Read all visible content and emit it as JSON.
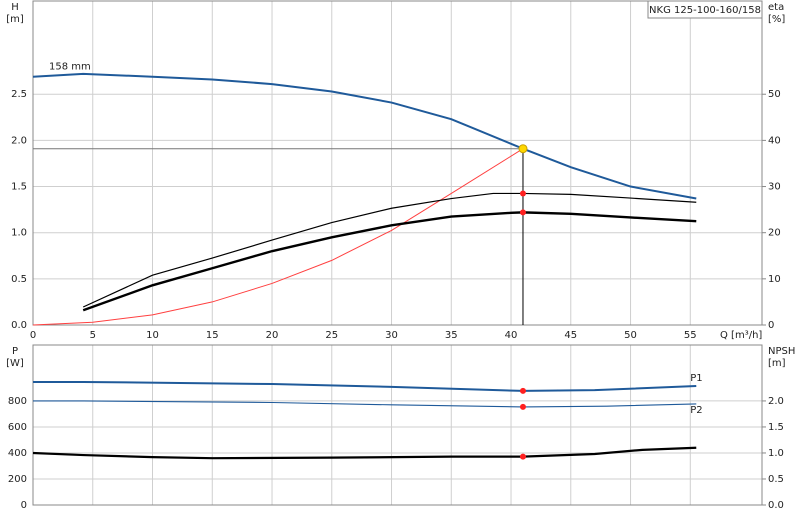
{
  "chart_data": [
    {
      "type": "line",
      "title": "NKG 125-100-160/158",
      "ylabel": [
        "H",
        "[m]"
      ],
      "y2label": [
        "eta",
        "[%]"
      ],
      "xlabel": "Q [m³/h]",
      "xlim": [
        0,
        61
      ],
      "xticks": [
        0,
        5,
        10,
        15,
        20,
        25,
        30,
        35,
        40,
        45,
        50,
        55
      ],
      "show_xtick_labels": true,
      "ylim": [
        0,
        3.51
      ],
      "yticks": [
        {
          "value": 0,
          "label": "0.0"
        },
        0.5,
        {
          "value": 1,
          "label": "1.0"
        },
        1.5,
        {
          "value": 2,
          "label": "2.0"
        },
        2.5
      ],
      "y2lim": [
        0,
        70.2
      ],
      "y2ticks": [
        0,
        10,
        20,
        30,
        40,
        50
      ],
      "grid": true,
      "operating_x": 41,
      "operating_lines": true,
      "series": [
        {
          "name": "158 mm",
          "color": "#1f5a9a",
          "point_color": "#ffd700",
          "x": [
            0,
            4.2,
            10,
            15,
            20,
            25,
            30,
            35,
            41,
            45,
            50,
            55.5
          ],
          "values": [
            2.69,
            2.72,
            2.69,
            2.66,
            2.61,
            2.53,
            2.41,
            2.23,
            1.91,
            1.71,
            1.5,
            1.37
          ]
        },
        {
          "color": "#ff4040",
          "axis": "y2",
          "x": [
            0,
            5,
            10,
            15,
            20,
            25,
            30,
            35,
            41
          ],
          "values": [
            0,
            0.6,
            2.2,
            5,
            9,
            14,
            20.5,
            28.5,
            38.2
          ]
        },
        {
          "color": "#000000",
          "axis": "y2",
          "point_color": "#ff2020",
          "x": [
            4.2,
            10,
            15,
            20,
            25,
            30,
            35,
            38.5,
            41,
            45,
            50,
            55.5
          ],
          "values": [
            3.9,
            10.8,
            14.5,
            18.4,
            22.2,
            25.3,
            27.4,
            28.5,
            28.5,
            28.3,
            27.5,
            26.6
          ]
        },
        {
          "color": "#000000",
          "axis": "y2",
          "point_color": "#ff2020",
          "x": [
            4.2,
            10,
            15,
            20,
            25,
            30,
            35,
            40,
            41,
            45,
            50,
            55.5
          ],
          "values": [
            3.2,
            8.6,
            12.3,
            16,
            19,
            21.6,
            23.5,
            24.3,
            24.4,
            24.1,
            23.3,
            22.5
          ]
        }
      ]
    },
    {
      "type": "line",
      "ylabel": [
        "P",
        "[W]"
      ],
      "y2label": [
        "NPSH",
        "[m]"
      ],
      "xlim": [
        0,
        61
      ],
      "xticks": [
        0,
        5,
        10,
        15,
        20,
        25,
        30,
        35,
        40,
        45,
        50,
        55
      ],
      "show_xtick_labels": false,
      "ylim": [
        0,
        1230
      ],
      "yticks": [
        0,
        200,
        400,
        600,
        800
      ],
      "y2lim": [
        0,
        3.075
      ],
      "y2ticks": [
        {
          "value": 0,
          "label": "0.0"
        },
        0.5,
        {
          "value": 1,
          "label": "1.0"
        },
        1.5,
        {
          "value": 2,
          "label": "2.0"
        }
      ],
      "grid": true,
      "operating_x": 41,
      "operating_lines": false,
      "series": [
        {
          "name": "P1",
          "color": "#1f5a9a",
          "point_color": "#ff2020",
          "x": [
            0,
            4.2,
            20,
            30,
            41,
            47,
            55.5
          ],
          "values": [
            946,
            946,
            930,
            908,
            877,
            883,
            915
          ]
        },
        {
          "name": "P2",
          "color": "#1f5a9a",
          "point_color": "#ff2020",
          "x": [
            0,
            4.2,
            20,
            30,
            41,
            48,
            55.5
          ],
          "values": [
            800,
            800,
            788,
            770,
            754,
            760,
            777
          ]
        },
        {
          "color": "#000000",
          "axis": "y2",
          "point_color": "#ff2020",
          "x": [
            0,
            4.2,
            10,
            15,
            25,
            35,
            41,
            47,
            51,
            55.5
          ],
          "values": [
            1.0,
            0.96,
            0.92,
            0.9,
            0.91,
            0.93,
            0.93,
            0.98,
            1.06,
            1.1
          ]
        }
      ]
    }
  ]
}
